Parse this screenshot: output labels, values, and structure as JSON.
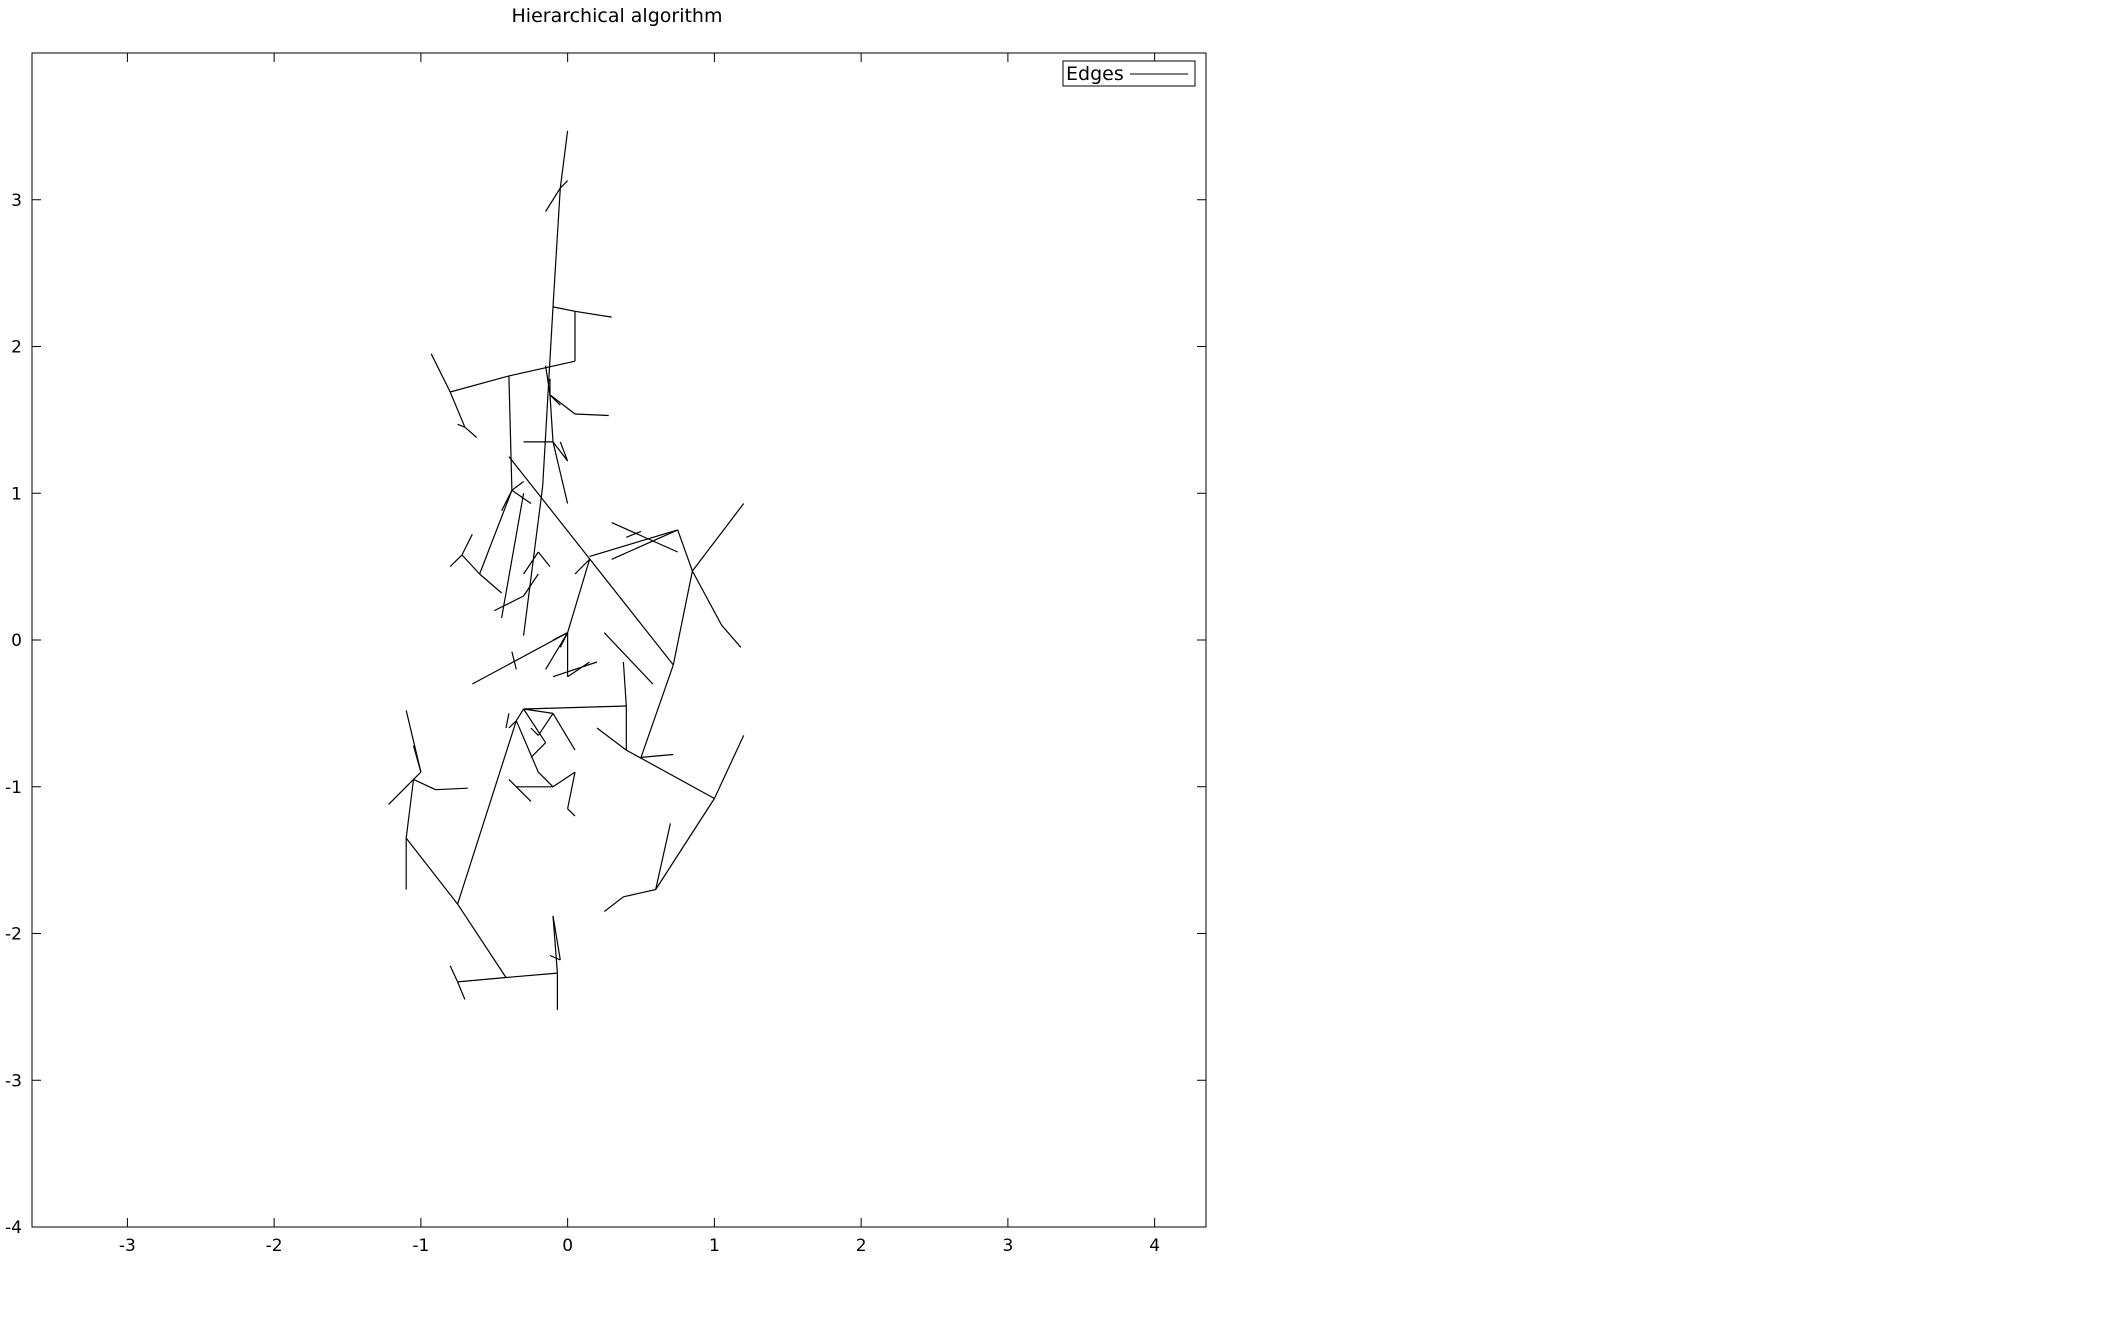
{
  "chart_data": {
    "type": "line",
    "title": "Hierarchical algorithm",
    "xlabel": "",
    "ylabel": "",
    "xlim": [
      -3.65,
      4.35
    ],
    "ylim": [
      -4.0,
      4.0
    ],
    "xticks": [
      -3,
      -2,
      -1,
      0,
      1,
      2,
      3,
      4
    ],
    "yticks": [
      -4,
      -3,
      -2,
      -1,
      0,
      1,
      2,
      3
    ],
    "xtick_labels": [
      "-3",
      "-2",
      "-1",
      "0",
      "1",
      "2",
      "3",
      "4"
    ],
    "ytick_labels": [
      "-4",
      "-3",
      "-2",
      "-1",
      "0",
      "1",
      "2",
      "3"
    ],
    "grid": false,
    "legend_position": "top-right",
    "line_color": "#000000",
    "series": [
      {
        "name": "Edges",
        "segments": [
          [
            [
              -0.05,
              3.08
            ],
            [
              0.0,
              3.47
            ]
          ],
          [
            [
              -0.05,
              3.08
            ],
            [
              -0.15,
              2.92
            ]
          ],
          [
            [
              -0.05,
              3.08
            ],
            [
              0.0,
              3.13
            ]
          ],
          [
            [
              -0.05,
              3.08
            ],
            [
              -0.1,
              2.27
            ]
          ],
          [
            [
              -0.1,
              2.27
            ],
            [
              0.05,
              2.24
            ]
          ],
          [
            [
              0.05,
              2.24
            ],
            [
              0.3,
              2.2
            ]
          ],
          [
            [
              0.05,
              2.24
            ],
            [
              0.05,
              1.9
            ]
          ],
          [
            [
              0.05,
              1.9
            ],
            [
              -0.4,
              1.8
            ]
          ],
          [
            [
              -0.4,
              1.8
            ],
            [
              -0.8,
              1.69
            ]
          ],
          [
            [
              -0.8,
              1.69
            ],
            [
              -0.93,
              1.95
            ]
          ],
          [
            [
              -0.8,
              1.69
            ],
            [
              -0.7,
              1.45
            ]
          ],
          [
            [
              -0.7,
              1.45
            ],
            [
              -0.62,
              1.38
            ]
          ],
          [
            [
              -0.7,
              1.45
            ],
            [
              -0.75,
              1.47
            ]
          ],
          [
            [
              -0.1,
              2.27
            ],
            [
              -0.17,
              1.05
            ]
          ],
          [
            [
              -0.17,
              1.05
            ],
            [
              -0.3,
              0.03
            ]
          ],
          [
            [
              -0.15,
              1.87
            ],
            [
              -0.12,
              1.67
            ]
          ],
          [
            [
              -0.12,
              1.67
            ],
            [
              -0.05,
              1.6
            ]
          ],
          [
            [
              -0.12,
              1.67
            ],
            [
              -0.12,
              1.78
            ]
          ],
          [
            [
              -0.12,
              1.67
            ],
            [
              0.05,
              1.54
            ]
          ],
          [
            [
              0.05,
              1.54
            ],
            [
              0.28,
              1.53
            ]
          ],
          [
            [
              -0.12,
              1.67
            ],
            [
              -0.1,
              1.35
            ]
          ],
          [
            [
              -0.1,
              1.35
            ],
            [
              -0.3,
              1.35
            ]
          ],
          [
            [
              -0.1,
              1.35
            ],
            [
              0.0,
              1.22
            ]
          ],
          [
            [
              0.0,
              1.22
            ],
            [
              -0.05,
              1.35
            ]
          ],
          [
            [
              -0.1,
              1.35
            ],
            [
              0.0,
              0.93
            ]
          ],
          [
            [
              -0.4,
              1.8
            ],
            [
              -0.38,
              1.02
            ]
          ],
          [
            [
              -0.38,
              1.02
            ],
            [
              -0.45,
              0.88
            ]
          ],
          [
            [
              -0.38,
              1.02
            ],
            [
              -0.3,
              1.08
            ]
          ],
          [
            [
              -0.38,
              1.02
            ],
            [
              -0.25,
              0.93
            ]
          ],
          [
            [
              -0.38,
              1.02
            ],
            [
              -0.6,
              0.45
            ]
          ],
          [
            [
              -0.6,
              0.45
            ],
            [
              -0.45,
              0.32
            ]
          ],
          [
            [
              -0.6,
              0.45
            ],
            [
              -0.72,
              0.58
            ]
          ],
          [
            [
              -0.72,
              0.58
            ],
            [
              -0.8,
              0.5
            ]
          ],
          [
            [
              -0.72,
              0.58
            ],
            [
              -0.65,
              0.72
            ]
          ],
          [
            [
              -0.3,
              1.0
            ],
            [
              -0.45,
              0.15
            ]
          ],
          [
            [
              -0.4,
              1.25
            ],
            [
              0.72,
              -0.17
            ]
          ],
          [
            [
              0.72,
              -0.17
            ],
            [
              0.5,
              -0.8
            ]
          ],
          [
            [
              0.5,
              -0.8
            ],
            [
              0.72,
              -0.78
            ]
          ],
          [
            [
              0.72,
              -0.17
            ],
            [
              0.85,
              0.47
            ]
          ],
          [
            [
              0.85,
              0.47
            ],
            [
              1.2,
              0.93
            ]
          ],
          [
            [
              0.85,
              0.47
            ],
            [
              0.75,
              0.75
            ]
          ],
          [
            [
              0.75,
              0.75
            ],
            [
              0.3,
              0.55
            ]
          ],
          [
            [
              0.75,
              0.75
            ],
            [
              0.15,
              0.57
            ]
          ],
          [
            [
              0.85,
              0.47
            ],
            [
              1.05,
              0.1
            ]
          ],
          [
            [
              1.05,
              0.1
            ],
            [
              1.18,
              -0.05
            ]
          ],
          [
            [
              0.3,
              0.8
            ],
            [
              0.75,
              0.6
            ]
          ],
          [
            [
              0.4,
              0.7
            ],
            [
              0.5,
              0.74
            ]
          ],
          [
            [
              0.15,
              0.55
            ],
            [
              0.05,
              0.45
            ]
          ],
          [
            [
              0.15,
              0.55
            ],
            [
              0.0,
              0.05
            ]
          ],
          [
            [
              0.0,
              0.05
            ],
            [
              -0.05,
              -0.05
            ]
          ],
          [
            [
              -0.2,
              0.6
            ],
            [
              -0.3,
              0.45
            ]
          ],
          [
            [
              -0.2,
              0.6
            ],
            [
              -0.12,
              0.5
            ]
          ],
          [
            [
              0.0,
              0.05
            ],
            [
              0.0,
              -0.25
            ]
          ],
          [
            [
              0.0,
              -0.25
            ],
            [
              0.15,
              -0.15
            ]
          ],
          [
            [
              0.0,
              0.05
            ],
            [
              -0.65,
              -0.3
            ]
          ],
          [
            [
              -0.35,
              -0.2
            ],
            [
              -0.38,
              -0.08
            ]
          ],
          [
            [
              0.25,
              0.05
            ],
            [
              0.58,
              -0.3
            ]
          ],
          [
            [
              0.38,
              -0.15
            ],
            [
              0.4,
              -0.45
            ]
          ],
          [
            [
              0.4,
              -0.45
            ],
            [
              -0.3,
              -0.47
            ]
          ],
          [
            [
              0.4,
              -0.45
            ],
            [
              0.4,
              -0.75
            ]
          ],
          [
            [
              0.4,
              -0.75
            ],
            [
              0.2,
              -0.6
            ]
          ],
          [
            [
              0.4,
              -0.75
            ],
            [
              1.0,
              -1.08
            ]
          ],
          [
            [
              1.0,
              -1.08
            ],
            [
              1.2,
              -0.65
            ]
          ],
          [
            [
              1.0,
              -1.08
            ],
            [
              0.6,
              -1.7
            ]
          ],
          [
            [
              0.6,
              -1.7
            ],
            [
              0.38,
              -1.75
            ]
          ],
          [
            [
              0.38,
              -1.75
            ],
            [
              0.25,
              -1.85
            ]
          ],
          [
            [
              0.6,
              -1.7
            ],
            [
              0.7,
              -1.25
            ]
          ],
          [
            [
              -0.3,
              -0.47
            ],
            [
              -0.35,
              -0.55
            ]
          ],
          [
            [
              -0.35,
              -0.55
            ],
            [
              -0.4,
              -0.6
            ]
          ],
          [
            [
              -0.35,
              -0.55
            ],
            [
              -0.2,
              -0.9
            ]
          ],
          [
            [
              -0.35,
              -0.55
            ],
            [
              -0.75,
              -1.8
            ]
          ],
          [
            [
              -0.75,
              -1.8
            ],
            [
              -1.1,
              -1.35
            ]
          ],
          [
            [
              -1.1,
              -1.35
            ],
            [
              -1.1,
              -1.7
            ]
          ],
          [
            [
              -1.1,
              -1.35
            ],
            [
              -1.05,
              -0.95
            ]
          ],
          [
            [
              -1.05,
              -0.95
            ],
            [
              -1.22,
              -1.12
            ]
          ],
          [
            [
              -1.05,
              -0.95
            ],
            [
              -0.9,
              -1.02
            ]
          ],
          [
            [
              -0.9,
              -1.02
            ],
            [
              -0.68,
              -1.01
            ]
          ],
          [
            [
              -1.05,
              -0.95
            ],
            [
              -1.0,
              -0.9
            ]
          ],
          [
            [
              -1.0,
              -0.9
            ],
            [
              -1.05,
              -0.72
            ]
          ],
          [
            [
              -1.0,
              -0.9
            ],
            [
              -1.1,
              -0.48
            ]
          ],
          [
            [
              -0.75,
              -1.8
            ],
            [
              -0.42,
              -2.3
            ]
          ],
          [
            [
              -0.42,
              -2.3
            ],
            [
              -0.75,
              -2.33
            ]
          ],
          [
            [
              -0.75,
              -2.33
            ],
            [
              -0.8,
              -2.22
            ]
          ],
          [
            [
              -0.75,
              -2.33
            ],
            [
              -0.7,
              -2.45
            ]
          ],
          [
            [
              -0.42,
              -2.3
            ],
            [
              -0.07,
              -2.27
            ]
          ],
          [
            [
              -0.07,
              -2.27
            ],
            [
              -0.07,
              -2.52
            ]
          ],
          [
            [
              -0.07,
              -2.27
            ],
            [
              -0.1,
              -1.88
            ]
          ],
          [
            [
              -0.1,
              -1.88
            ],
            [
              -0.05,
              -2.18
            ]
          ],
          [
            [
              -0.05,
              -2.18
            ],
            [
              -0.12,
              -2.15
            ]
          ],
          [
            [
              -0.2,
              -0.9
            ],
            [
              -0.1,
              -1.0
            ]
          ],
          [
            [
              -0.1,
              -1.0
            ],
            [
              -0.35,
              -1.0
            ]
          ],
          [
            [
              -0.1,
              -1.0
            ],
            [
              0.05,
              -0.9
            ]
          ],
          [
            [
              0.05,
              -0.9
            ],
            [
              0.0,
              -1.15
            ]
          ],
          [
            [
              0.0,
              -1.15
            ],
            [
              0.05,
              -1.2
            ]
          ],
          [
            [
              -0.3,
              -0.47
            ],
            [
              -0.1,
              -0.5
            ]
          ],
          [
            [
              -0.1,
              -0.5
            ],
            [
              0.05,
              -0.75
            ]
          ],
          [
            [
              -0.1,
              -0.5
            ],
            [
              -0.2,
              -0.65
            ]
          ],
          [
            [
              -0.2,
              -0.65
            ],
            [
              -0.25,
              -0.6
            ]
          ],
          [
            [
              -0.4,
              -0.5
            ],
            [
              -0.42,
              -0.6
            ]
          ],
          [
            [
              -0.3,
              -0.47
            ],
            [
              -0.15,
              -0.7
            ]
          ],
          [
            [
              -0.15,
              -0.7
            ],
            [
              -0.25,
              -0.8
            ]
          ],
          [
            [
              -0.4,
              -0.95
            ],
            [
              -0.25,
              -1.1
            ]
          ],
          [
            [
              0.0,
              0.05
            ],
            [
              -0.15,
              -0.2
            ]
          ],
          [
            [
              0.2,
              -0.15
            ],
            [
              -0.1,
              -0.25
            ]
          ],
          [
            [
              0.0,
              0.05
            ],
            [
              -0.1,
              0.0
            ]
          ],
          [
            [
              -0.3,
              0.3
            ],
            [
              -0.2,
              0.45
            ]
          ],
          [
            [
              -0.3,
              0.3
            ],
            [
              -0.5,
              0.2
            ]
          ]
        ]
      }
    ]
  }
}
